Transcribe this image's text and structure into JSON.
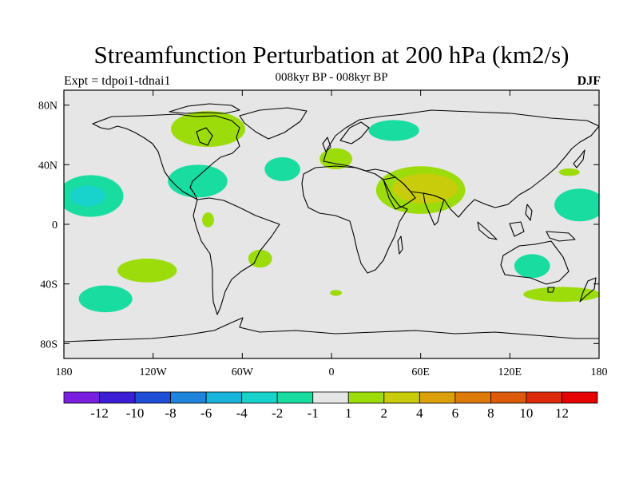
{
  "title": "Streamfunction Perturbation at 200 hPa (km2/s)",
  "experiment": "Expt = tdpoi1-tdnai1",
  "period": "008kyr BP - 008kyr BP",
  "season": "DJF",
  "chart_data": {
    "type": "heatmap",
    "projection": "cylindrical-equidistant",
    "x_range": [
      -180,
      180
    ],
    "y_range": [
      -90,
      90
    ],
    "x_ticks": [
      {
        "value": -180,
        "label": "180"
      },
      {
        "value": -120,
        "label": "120W"
      },
      {
        "value": -60,
        "label": "60W"
      },
      {
        "value": 0,
        "label": "0"
      },
      {
        "value": 60,
        "label": "60E"
      },
      {
        "value": 120,
        "label": "120E"
      },
      {
        "value": 180,
        "label": "180"
      }
    ],
    "y_ticks": [
      {
        "value": 80,
        "label": "80N"
      },
      {
        "value": 40,
        "label": "40N"
      },
      {
        "value": 0,
        "label": "0"
      },
      {
        "value": -40,
        "label": "40S"
      },
      {
        "value": -80,
        "label": "80S"
      }
    ],
    "colorbar": {
      "colors": [
        "#7a1ee0",
        "#3c1ed6",
        "#1e4ed6",
        "#1e84dc",
        "#18b4dc",
        "#18d2cc",
        "#18dca0",
        "#e6e6e6",
        "#9cdc0a",
        "#c8cc0a",
        "#dca00a",
        "#dc7a0a",
        "#dc5a0a",
        "#dc2a0a",
        "#e60000"
      ],
      "labels": [
        "-12",
        "-10",
        "-8",
        "-6",
        "-4",
        "-2",
        "-1",
        "1",
        "2",
        "4",
        "6",
        "8",
        "10",
        "12"
      ]
    },
    "regions": [
      {
        "name": "hudson-bay",
        "lon": -83,
        "lat": 64,
        "rlon": 25,
        "rlat": 12,
        "color": "#9cdc0a"
      },
      {
        "name": "north-atlantic-east",
        "lon": -33,
        "lat": 37,
        "rlon": 12,
        "rlat": 8,
        "color": "#18dca0"
      },
      {
        "name": "gulf-of-mexico",
        "lon": -90,
        "lat": 29,
        "rlon": 20,
        "rlat": 11,
        "color": "#18dca0"
      },
      {
        "name": "north-pacific-east",
        "lon": -162,
        "lat": 19,
        "rlon": 22,
        "rlat": 14,
        "color": "#18dca0"
      },
      {
        "name": "north-pacific-east-core",
        "lon": -164,
        "lat": 19,
        "rlon": 12,
        "rlat": 7,
        "color": "#18d2cc"
      },
      {
        "name": "eastern-europe",
        "lon": 42,
        "lat": 63,
        "rlon": 17,
        "rlat": 7,
        "color": "#18dca0"
      },
      {
        "name": "mediterranean",
        "lon": 3,
        "lat": 44,
        "rlon": 11,
        "rlat": 7,
        "color": "#9cdc0a"
      },
      {
        "name": "arabia-india",
        "lon": 60,
        "lat": 23,
        "rlon": 30,
        "rlat": 16,
        "color": "#9cdc0a"
      },
      {
        "name": "arabia-india-core",
        "lon": 63,
        "lat": 24,
        "rlon": 22,
        "rlat": 10,
        "color": "#c8cc0a"
      },
      {
        "name": "japan",
        "lon": 160,
        "lat": 35,
        "rlon": 7,
        "rlat": 2.5,
        "color": "#9cdc0a"
      },
      {
        "name": "west-pacific",
        "lon": 167,
        "lat": 13,
        "rlon": 17,
        "rlat": 11,
        "color": "#18dca0"
      },
      {
        "name": "central-america",
        "lon": -83,
        "lat": 3,
        "rlon": 4,
        "rlat": 5,
        "color": "#9cdc0a"
      },
      {
        "name": "south-america-east",
        "lon": -48,
        "lat": -23,
        "rlon": 8,
        "rlat": 6,
        "color": "#9cdc0a"
      },
      {
        "name": "south-pacific",
        "lon": -124,
        "lat": -31,
        "rlon": 20,
        "rlat": 8,
        "color": "#9cdc0a"
      },
      {
        "name": "southern-ocean-west",
        "lon": -152,
        "lat": -50,
        "rlon": 18,
        "rlat": 9,
        "color": "#18dca0"
      },
      {
        "name": "south-atlantic-small",
        "lon": 3,
        "lat": -46,
        "rlon": 4,
        "rlat": 2,
        "color": "#9cdc0a"
      },
      {
        "name": "australia",
        "lon": 135,
        "lat": -28,
        "rlon": 12,
        "rlat": 8,
        "color": "#18dca0"
      },
      {
        "name": "new-zealand",
        "lon": 155,
        "lat": -47,
        "rlon": 26,
        "rlat": 5,
        "color": "#9cdc0a"
      }
    ]
  }
}
